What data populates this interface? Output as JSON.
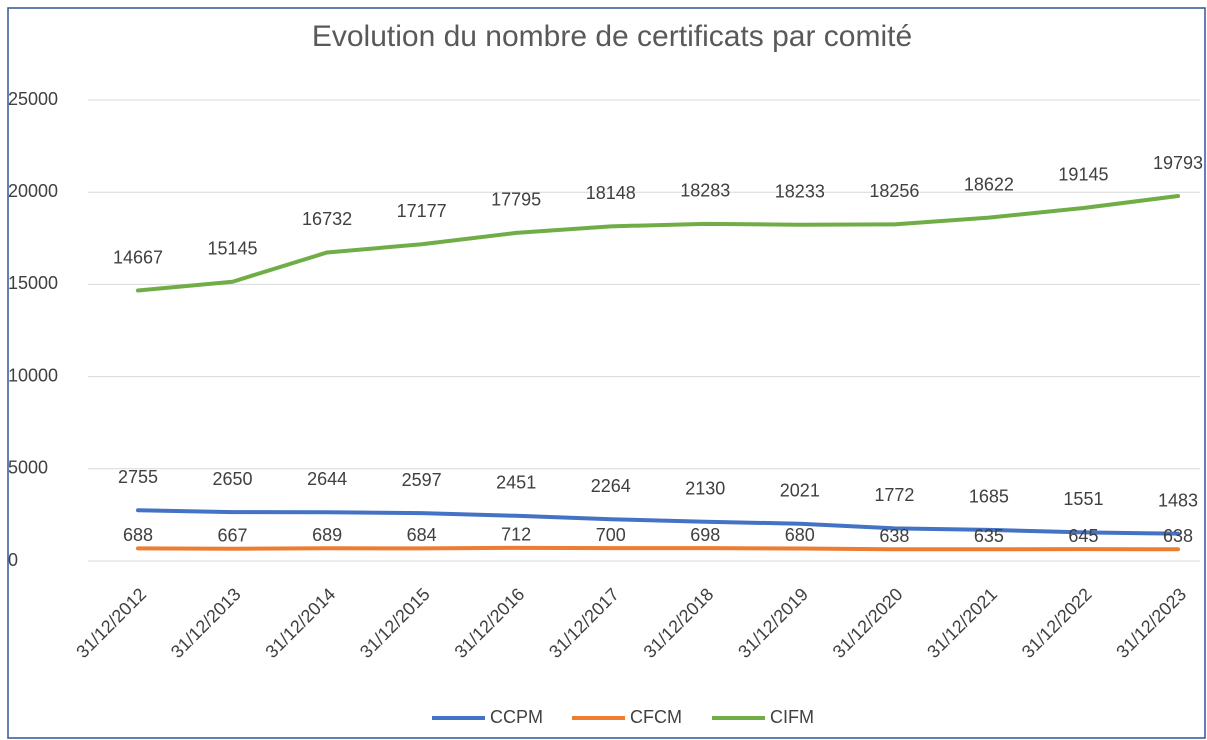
{
  "chart_data": {
    "type": "line",
    "title": "Evolution du nombre de certificats par comité",
    "categories": [
      "31/12/2012",
      "31/12/2013",
      "31/12/2014",
      "31/12/2015",
      "31/12/2016",
      "31/12/2017",
      "31/12/2018",
      "31/12/2019",
      "31/12/2020",
      "31/12/2021",
      "31/12/2022",
      "31/12/2023"
    ],
    "series": [
      {
        "name": "CCPM",
        "color": "#4472c4",
        "values": [
          2755,
          2650,
          2644,
          2597,
          2451,
          2264,
          2130,
          2021,
          1772,
          1685,
          1551,
          1483
        ]
      },
      {
        "name": "CFCM",
        "color": "#ed7d31",
        "values": [
          688,
          667,
          689,
          684,
          712,
          700,
          698,
          680,
          638,
          635,
          645,
          638
        ]
      },
      {
        "name": "CIFM",
        "color": "#70ad47",
        "values": [
          14667,
          15145,
          16732,
          17177,
          17795,
          18148,
          18283,
          18233,
          18256,
          18622,
          19145,
          19793
        ]
      }
    ],
    "ylim": [
      0,
      25000
    ],
    "yticks": [
      0,
      5000,
      10000,
      15000,
      20000,
      25000
    ],
    "grid": true,
    "legend": "bottom"
  }
}
